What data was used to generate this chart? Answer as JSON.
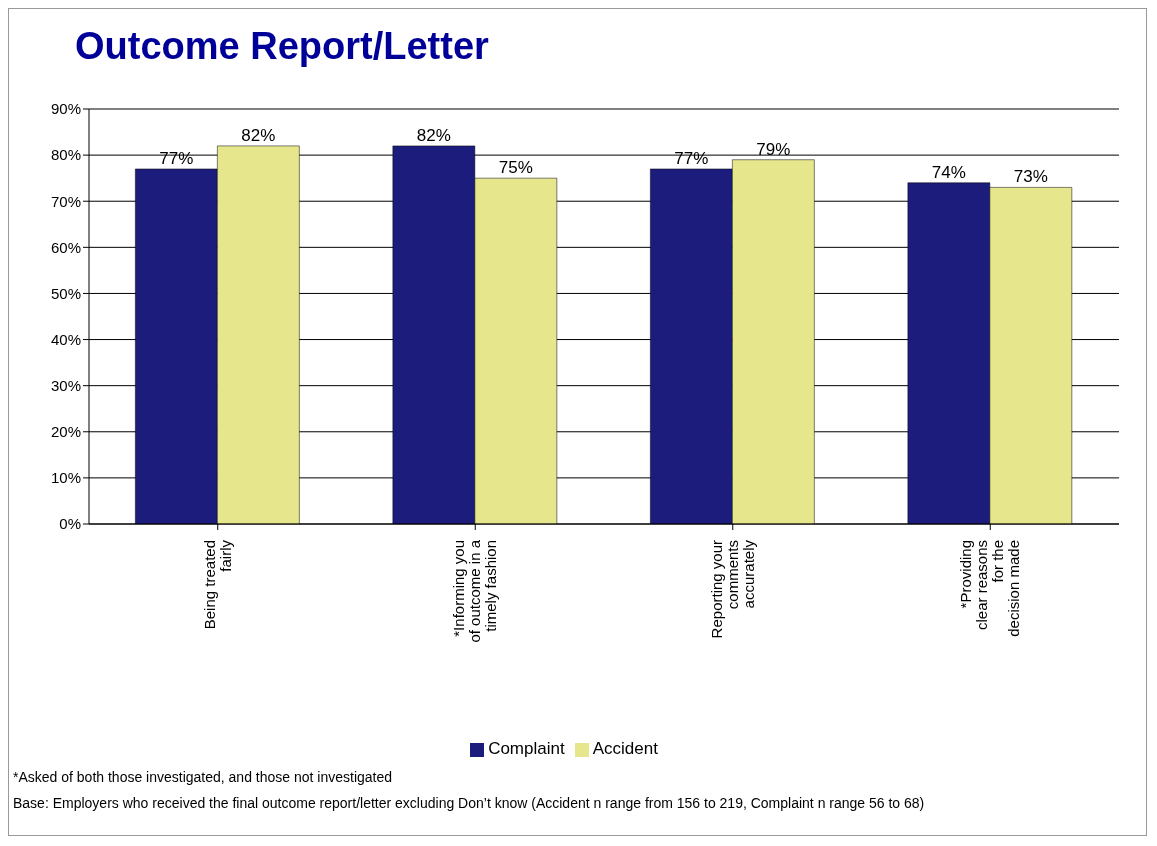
{
  "chart_data": {
    "type": "bar",
    "title": "Outcome Report/Letter",
    "categories": [
      "Being treated fairly",
      "*Informing you of outcome in a timely fashion",
      "Reporting your comments accurately",
      "*Providing clear reasons for the decision made"
    ],
    "series": [
      {
        "name": "Complaint",
        "color": "#1c1c7c",
        "values": [
          77,
          82,
          77,
          74
        ],
        "value_labels": [
          "77%",
          "82%",
          "77%",
          "74%"
        ]
      },
      {
        "name": "Accident",
        "color": "#e6e68c",
        "values": [
          82,
          75,
          79,
          73
        ],
        "value_labels": [
          "82%",
          "75%",
          "79%",
          "73%"
        ]
      }
    ],
    "ylim": [
      0,
      90
    ],
    "yticks": [
      {
        "value": 0,
        "label": "0%"
      },
      {
        "value": 10,
        "label": "10%"
      },
      {
        "value": 20,
        "label": "20%"
      },
      {
        "value": 30,
        "label": "30%"
      },
      {
        "value": 40,
        "label": "40%"
      },
      {
        "value": 50,
        "label": "50%"
      },
      {
        "value": 60,
        "label": "60%"
      },
      {
        "value": 70,
        "label": "70%"
      },
      {
        "value": 80,
        "label": "80%"
      },
      {
        "value": 90,
        "label": "90%"
      }
    ],
    "grid": "y",
    "legend": "bottom",
    "annotations": [
      "*Asked of both those investigated, and those not investigated",
      "Base:  Employers who received the final outcome report/letter excluding Don’t know (Accident n range from 156 to 219, Complaint n range 56 to 68)"
    ]
  }
}
